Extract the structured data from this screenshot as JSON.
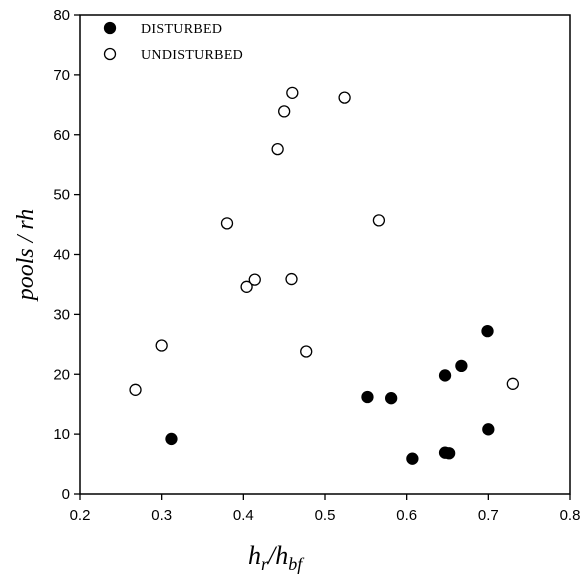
{
  "chart_data": {
    "type": "scatter",
    "xlabel": {
      "base": "h",
      "sub": "r",
      "sep": "/",
      "base2": "h",
      "sub2": "bf"
    },
    "ylabel": "pools / rh",
    "xlim": [
      0.2,
      0.8
    ],
    "ylim": [
      0,
      80
    ],
    "xticks": [
      "0.2",
      "0.3",
      "0.4",
      "0.5",
      "0.6",
      "0.7",
      "0.8"
    ],
    "xtick_values": [
      0.2,
      0.3,
      0.4,
      0.5,
      0.6,
      0.7,
      0.8
    ],
    "yticks": [
      "0",
      "10",
      "20",
      "30",
      "40",
      "50",
      "60",
      "70",
      "80"
    ],
    "ytick_values": [
      0,
      10,
      20,
      30,
      40,
      50,
      60,
      70,
      80
    ],
    "grid": false,
    "legend_position": "top-left",
    "series": [
      {
        "name": "DISTURBED",
        "marker": "filled-circle",
        "color": "#000000",
        "points": [
          [
            0.312,
            9.2
          ],
          [
            0.552,
            16.2
          ],
          [
            0.581,
            16.0
          ],
          [
            0.607,
            5.9
          ],
          [
            0.647,
            6.9
          ],
          [
            0.652,
            6.8
          ],
          [
            0.647,
            19.8
          ],
          [
            0.667,
            21.4
          ],
          [
            0.699,
            27.2
          ],
          [
            0.7,
            10.8
          ]
        ]
      },
      {
        "name": "UNDISTURBED",
        "marker": "open-circle",
        "color": "#000000",
        "points": [
          [
            0.268,
            17.4
          ],
          [
            0.3,
            24.8
          ],
          [
            0.38,
            45.2
          ],
          [
            0.404,
            34.6
          ],
          [
            0.414,
            35.8
          ],
          [
            0.442,
            57.6
          ],
          [
            0.45,
            63.9
          ],
          [
            0.46,
            67.0
          ],
          [
            0.459,
            35.9
          ],
          [
            0.477,
            23.8
          ],
          [
            0.524,
            66.2
          ],
          [
            0.566,
            45.7
          ],
          [
            0.73,
            18.4
          ]
        ]
      }
    ]
  }
}
